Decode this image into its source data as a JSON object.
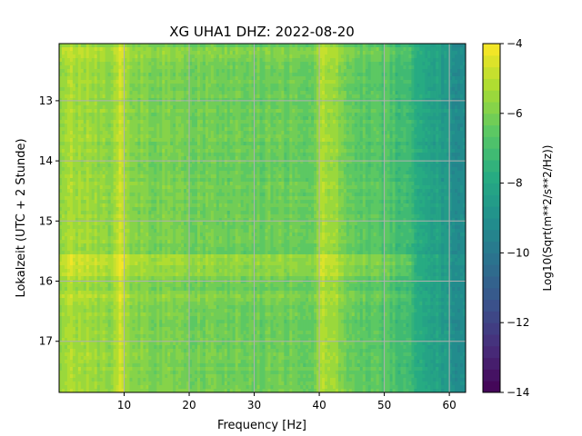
{
  "chart_data": {
    "type": "heatmap",
    "title": "XG UHA1  DHZ: 2022-08-20",
    "xlabel": "Frequency [Hz]",
    "ylabel": "Lokalzeit (UTC + 2 Stunde)",
    "xlim": [
      0,
      62.5
    ],
    "ylim": [
      17.85,
      12.05
    ],
    "x_ticks": [
      10,
      20,
      30,
      40,
      50,
      60
    ],
    "y_ticks": [
      13,
      14,
      15,
      16,
      17
    ],
    "grid": true,
    "colorbar": {
      "label": "Log10(Sqrt(m**2/s**2/Hz))",
      "vmin": -14,
      "vmax": -4,
      "ticks": [
        -4,
        -6,
        -8,
        -10,
        -12,
        -14
      ],
      "colormap": "viridis",
      "levels": 30
    },
    "z_profile_by_frequency": {
      "x": [
        0,
        2,
        5,
        8,
        9.5,
        11,
        15,
        20,
        25,
        30,
        35,
        39,
        40.5,
        42,
        44,
        46,
        48,
        50,
        52,
        54,
        56,
        58,
        60,
        62.5
      ],
      "z": [
        -5.5,
        -5.3,
        -5.5,
        -5.8,
        -4.8,
        -5.9,
        -6.0,
        -6.1,
        -6.2,
        -6.3,
        -6.3,
        -6.2,
        -5.3,
        -5.4,
        -6.3,
        -6.5,
        -6.6,
        -6.7,
        -7.0,
        -7.4,
        -7.8,
        -8.3,
        -8.8,
        -9.4
      ]
    },
    "bright_bands": [
      {
        "y_range": [
          15.55,
          15.9
        ],
        "delta": 0.6
      },
      {
        "y_range": [
          16.15,
          16.35
        ],
        "delta": 0.3
      },
      {
        "y_range": [
          12.1,
          12.35
        ],
        "delta": 0.3
      }
    ]
  }
}
